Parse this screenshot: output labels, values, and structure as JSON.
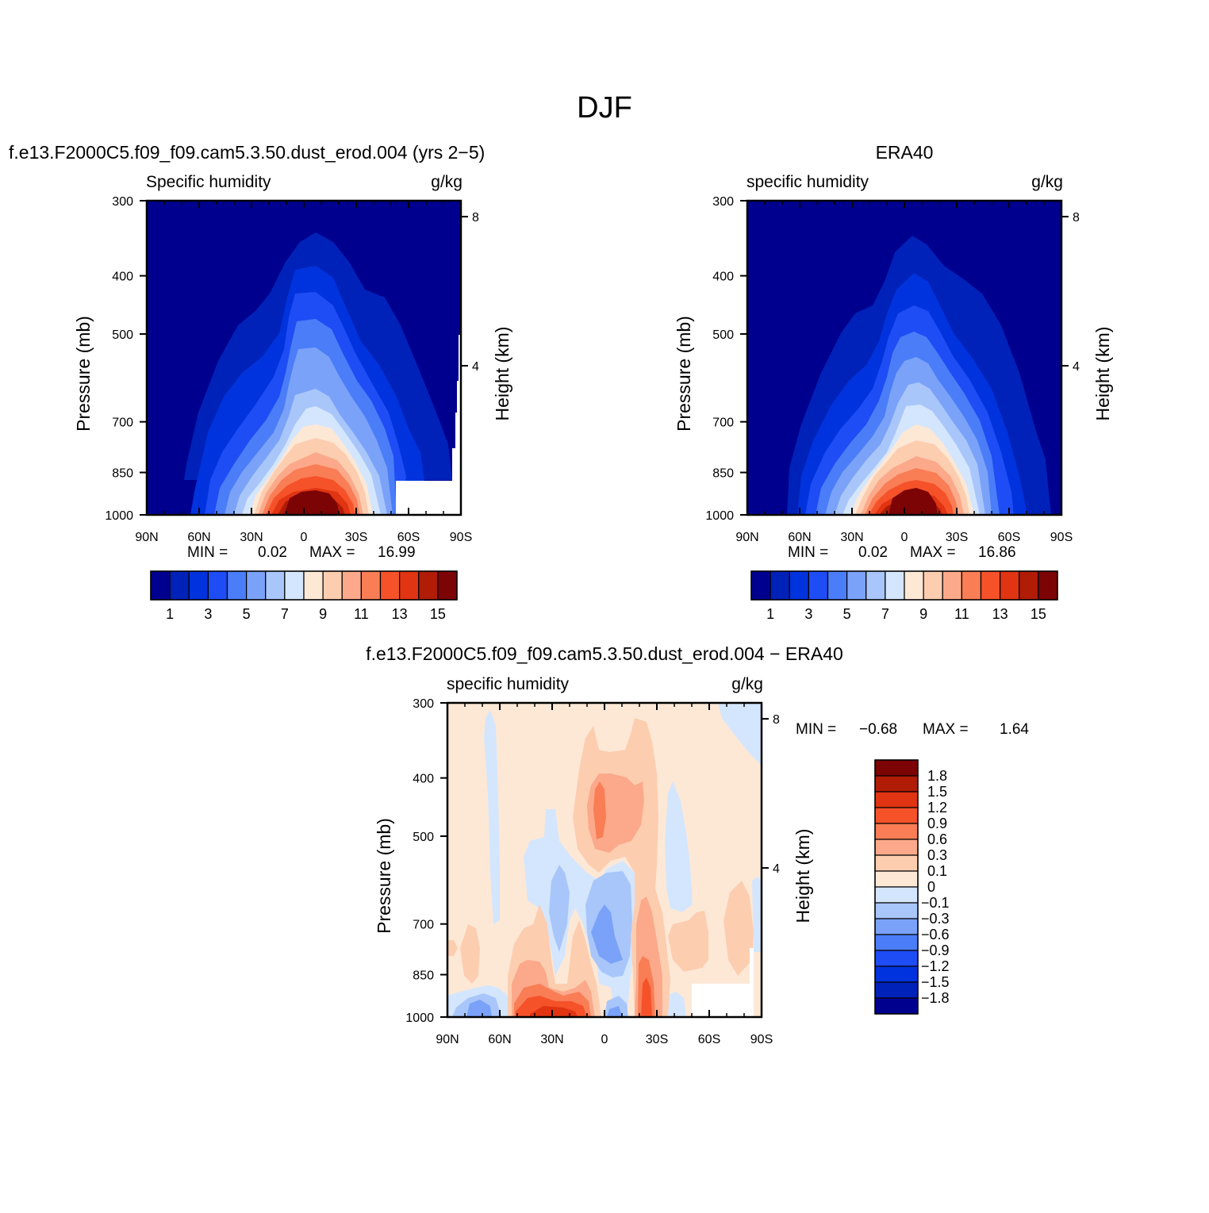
{
  "title": "DJF",
  "chart_data": [
    {
      "type": "heatmap",
      "title": "f.e13.F2000C5.f09_f09.cam5.3.50.dust_erod.004 (yrs 2−5)",
      "variable": "Specific humidity",
      "units": "g/kg",
      "ylabel": "Pressure (mb)",
      "ylabel_right": "Height (km)",
      "y_scale": "log",
      "ylim": [
        1000,
        300
      ],
      "yticks": [
        "300",
        "400",
        "500",
        "700",
        "850",
        "1000"
      ],
      "yticks_right": [
        "8",
        "4"
      ],
      "xticks": [
        "90N",
        "60N",
        "30N",
        "0",
        "30S",
        "60S",
        "90S"
      ],
      "xlim": [
        "90N",
        "90S"
      ],
      "min_label": "MIN =",
      "min_value": "0.02",
      "max_label": "MAX =",
      "max_value": "16.99",
      "legend_position": "bottom",
      "levels": [
        "1",
        "3",
        "5",
        "7",
        "9",
        "11",
        "13",
        "15"
      ],
      "colors": [
        "#00008f",
        "#0022b8",
        "#0033dd",
        "#1e4cf5",
        "#4a7df7",
        "#7ba2f9",
        "#a9c6fb",
        "#d4e6fd",
        "#fde8d6",
        "#fdcdb0",
        "#fba98a",
        "#f97d55",
        "#f5522a",
        "#e03412",
        "#b01c06",
        "#7c0404"
      ]
    },
    {
      "type": "heatmap",
      "title": "ERA40",
      "variable": "specific humidity",
      "units": "g/kg",
      "ylabel": "Pressure (mb)",
      "ylabel_right": "Height (km)",
      "y_scale": "log",
      "ylim": [
        1000,
        300
      ],
      "yticks": [
        "300",
        "400",
        "500",
        "700",
        "850",
        "1000"
      ],
      "yticks_right": [
        "8",
        "4"
      ],
      "xticks": [
        "90N",
        "60N",
        "30N",
        "0",
        "30S",
        "60S",
        "90S"
      ],
      "xlim": [
        "90N",
        "90S"
      ],
      "min_label": "MIN =",
      "min_value": "0.02",
      "max_label": "MAX =",
      "max_value": "16.86",
      "legend_position": "bottom",
      "levels": [
        "1",
        "3",
        "5",
        "7",
        "9",
        "11",
        "13",
        "15"
      ],
      "colors": [
        "#00008f",
        "#0022b8",
        "#0033dd",
        "#1e4cf5",
        "#4a7df7",
        "#7ba2f9",
        "#a9c6fb",
        "#d4e6fd",
        "#fde8d6",
        "#fdcdb0",
        "#fba98a",
        "#f97d55",
        "#f5522a",
        "#e03412",
        "#b01c06",
        "#7c0404"
      ]
    },
    {
      "type": "heatmap",
      "title": "f.e13.F2000C5.f09_f09.cam5.3.50.dust_erod.004 − ERA40",
      "variable": "specific humidity",
      "units": "g/kg",
      "ylabel": "Pressure (mb)",
      "ylabel_right": "Height (km)",
      "y_scale": "log",
      "ylim": [
        1000,
        300
      ],
      "yticks": [
        "300",
        "400",
        "500",
        "700",
        "850",
        "1000"
      ],
      "yticks_right": [
        "8",
        "4"
      ],
      "xticks": [
        "90N",
        "60N",
        "30N",
        "0",
        "30S",
        "60S",
        "90S"
      ],
      "xlim": [
        "90N",
        "90S"
      ],
      "min_label": "MIN =",
      "min_value": "−0.68",
      "max_label": "MAX =",
      "max_value": "1.64",
      "legend_position": "right",
      "levels": [
        "1.8",
        "1.5",
        "1.2",
        "0.9",
        "0.6",
        "0.3",
        "0.1",
        "0",
        "−0.1",
        "−0.3",
        "−0.6",
        "−0.9",
        "−1.2",
        "−1.5",
        "−1.8"
      ],
      "colors": [
        "#7c0404",
        "#b01c06",
        "#e03412",
        "#f5522a",
        "#f97d55",
        "#fba98a",
        "#fdcdb0",
        "#fde8d6",
        "#d4e6fd",
        "#a9c6fb",
        "#7ba2f9",
        "#4a7df7",
        "#1e4cf5",
        "#0033dd",
        "#0022b8",
        "#00008f"
      ]
    }
  ]
}
